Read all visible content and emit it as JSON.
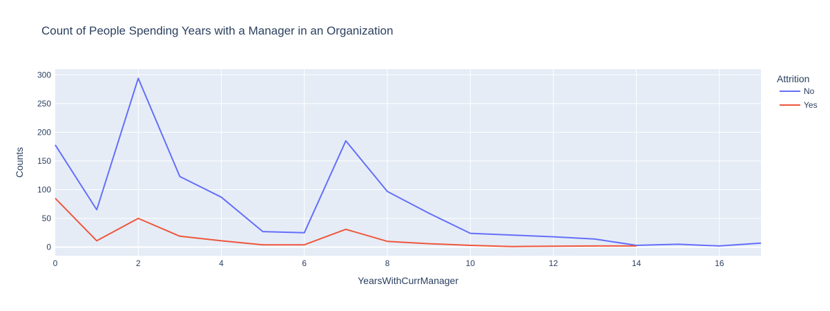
{
  "chart_data": {
    "type": "line",
    "title": "Count of People Spending Years with a Manager in an Organization",
    "xlabel": "YearsWithCurrManager",
    "ylabel": "Counts",
    "xlim": [
      0,
      17
    ],
    "ylim": [
      -15,
      310
    ],
    "xticks": [
      0,
      2,
      4,
      6,
      8,
      10,
      12,
      14,
      16
    ],
    "yticks": [
      0,
      50,
      100,
      150,
      200,
      250,
      300
    ],
    "grid": true,
    "legend": {
      "title": "Attrition",
      "position": "top-right"
    },
    "series": [
      {
        "name": "No",
        "color": "#636efa",
        "x": [
          0,
          1,
          2,
          3,
          4,
          5,
          6,
          7,
          8,
          9,
          10,
          11,
          12,
          13,
          14,
          15,
          16,
          17
        ],
        "y": [
          178,
          65,
          294,
          123,
          87,
          27,
          25,
          185,
          97,
          59,
          24,
          21,
          18,
          14,
          3,
          5,
          2,
          7
        ]
      },
      {
        "name": "Yes",
        "color": "#ef553b",
        "x": [
          0,
          1,
          2,
          3,
          4,
          5,
          6,
          7,
          8,
          9,
          10,
          11,
          12,
          13,
          14
        ],
        "y": [
          85,
          11,
          50,
          19,
          11,
          4,
          4,
          31,
          10,
          6,
          3,
          1,
          1.5,
          2,
          2
        ]
      }
    ]
  }
}
